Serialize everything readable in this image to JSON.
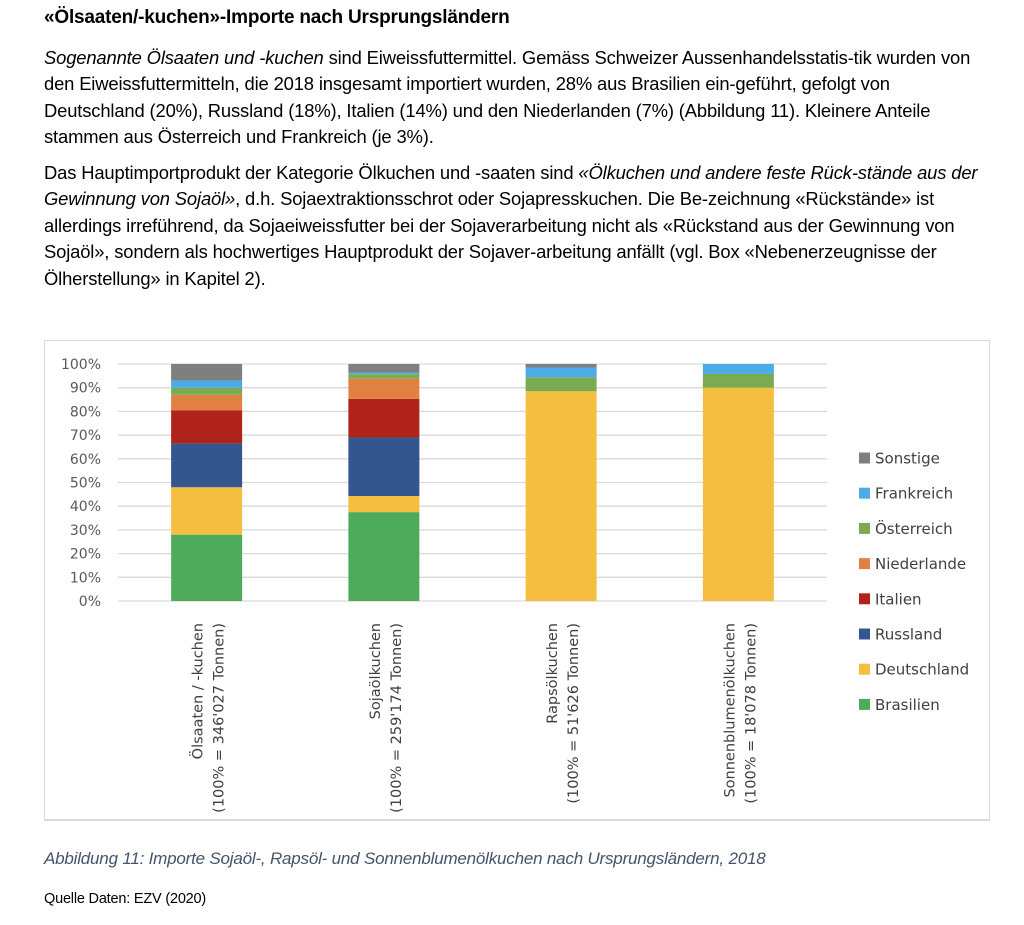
{
  "document": {
    "heading": "«Ölsaaten/-kuchen»-Importe nach Ursprungsländern",
    "paragraph1": {
      "italic_lead": "Sogenannte Ölsaaten und -kuchen",
      "text": " sind Eiweissfuttermittel. Gemäss Schweizer Aussenhandelsstatis-tik wurden von den Eiweissfuttermitteln, die 2018 insgesamt importiert wurden, 28% aus Brasilien ein-geführt, gefolgt von Deutschland (20%), Russland (18%), Italien (14%) und den Niederlanden (7%) (Abbildung 11). Kleinere Anteile stammen aus Österreich und Frankreich (je 3%)."
    },
    "paragraph2": {
      "text_before": "Das Hauptimportprodukt der Kategorie Ölkuchen und -saaten sind ",
      "italic_quote": "«Ölkuchen und andere feste Rück-stände aus der Gewinnung von Sojaöl»",
      "text_after": ", d.h. Sojaextraktionsschrot oder Sojapresskuchen. Die Be-zeichnung «Rückstände» ist allerdings irreführend, da Sojaeiweissfutter bei der Sojaverarbeitung nicht als «Rückstand aus der Gewinnung von Sojaöl», sondern als hochwertiges Hauptprodukt der Sojaver-arbeitung anfällt (vgl. Box «Nebenerzeugnisse der Ölherstellung» in Kapitel 2)."
    },
    "caption": "Abbildung 11: Importe Sojaöl-, Rapsöl- und Sonnenblumenölkuchen nach Ursprungsländern, 2018",
    "source": "Quelle Daten: EZV (2020)"
  },
  "chart_data": {
    "type": "bar",
    "stacked": true,
    "percent_stacked": true,
    "title": "",
    "xlabel": "",
    "ylabel": "",
    "ylim": [
      0,
      100
    ],
    "y_ticks": [
      "0%",
      "10%",
      "20%",
      "30%",
      "40%",
      "50%",
      "60%",
      "70%",
      "80%",
      "90%",
      "100%"
    ],
    "grid": true,
    "legend_position": "right",
    "categories": [
      [
        "Ölsaaten / -kuchen",
        "(100% = 346'027 Tonnen)"
      ],
      [
        "Sojaölkuchen",
        "(100% = 259'174 Tonnen)"
      ],
      [
        "Rapsölkuchen",
        "(100% = 51'626 Tonnen)"
      ],
      [
        "Sonnenblumenölkuchen",
        "(100% = 18'078 Tonnen)"
      ]
    ],
    "series": [
      {
        "name": "Brasilien",
        "color": "#4dab5b",
        "values": [
          28.0,
          37.5,
          0,
          0
        ]
      },
      {
        "name": "Deutschland",
        "color": "#f5be41",
        "values": [
          20.0,
          6.8,
          88.5,
          90.0
        ]
      },
      {
        "name": "Russland",
        "color": "#34568f",
        "values": [
          18.5,
          24.7,
          0,
          0
        ]
      },
      {
        "name": "Italien",
        "color": "#b0231a",
        "values": [
          14.0,
          16.3,
          0,
          0
        ]
      },
      {
        "name": "Niederlande",
        "color": "#e08142",
        "values": [
          6.5,
          8.5,
          0,
          0
        ]
      },
      {
        "name": "Österreich",
        "color": "#7aab52",
        "values": [
          3.0,
          1.9,
          5.9,
          5.8
        ]
      },
      {
        "name": "Frankreich",
        "color": "#4bace8",
        "values": [
          3.0,
          0.6,
          4.1,
          4.2
        ]
      },
      {
        "name": "Sonstige",
        "color": "#7f7f7f",
        "values": [
          7.0,
          3.7,
          1.5,
          0
        ]
      }
    ]
  }
}
